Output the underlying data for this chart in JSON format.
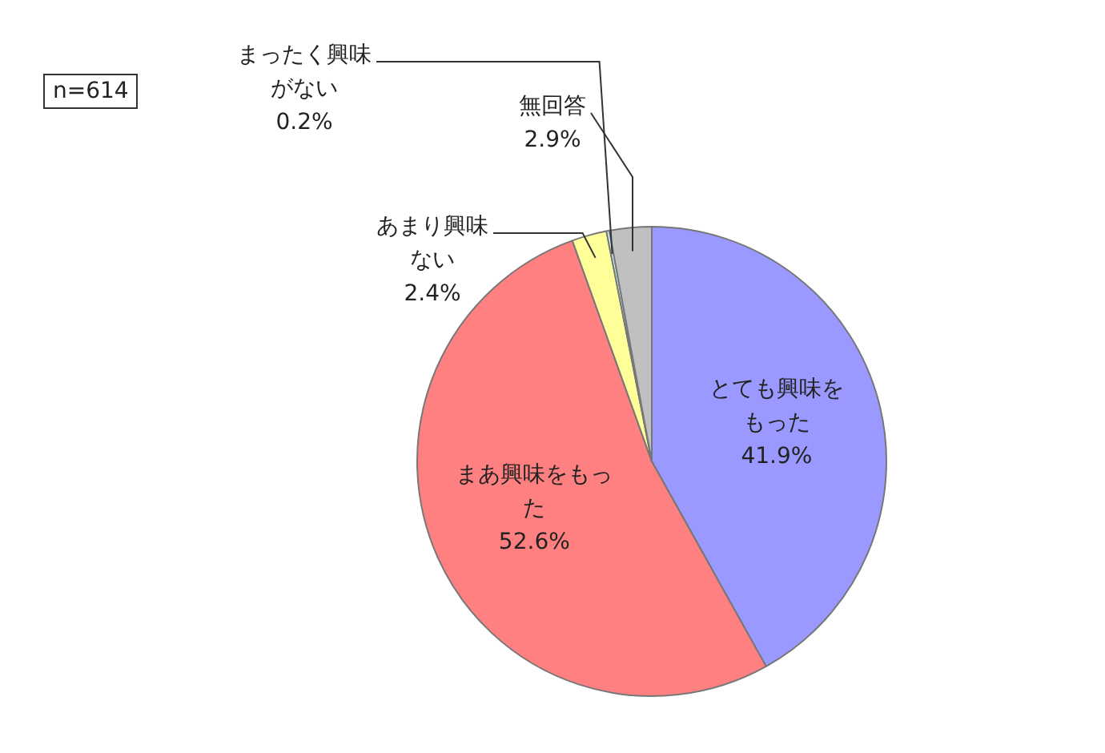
{
  "chart_data": {
    "type": "pie",
    "categories": [
      "とても興味をもった",
      "まあ興味をもった",
      "あまり興味ない",
      "まったく興味がない",
      "無回答"
    ],
    "values": [
      41.9,
      52.6,
      2.4,
      0.2,
      2.9
    ],
    "value_labels": [
      "41.9%",
      "52.6%",
      "2.4%",
      "0.2%",
      "2.9%"
    ],
    "colors": [
      "#9999ff",
      "#ff8080",
      "#ffff99",
      "#ccffff",
      "#c0c0c0"
    ],
    "annotations": [
      "n=614"
    ],
    "legend": false
  }
}
